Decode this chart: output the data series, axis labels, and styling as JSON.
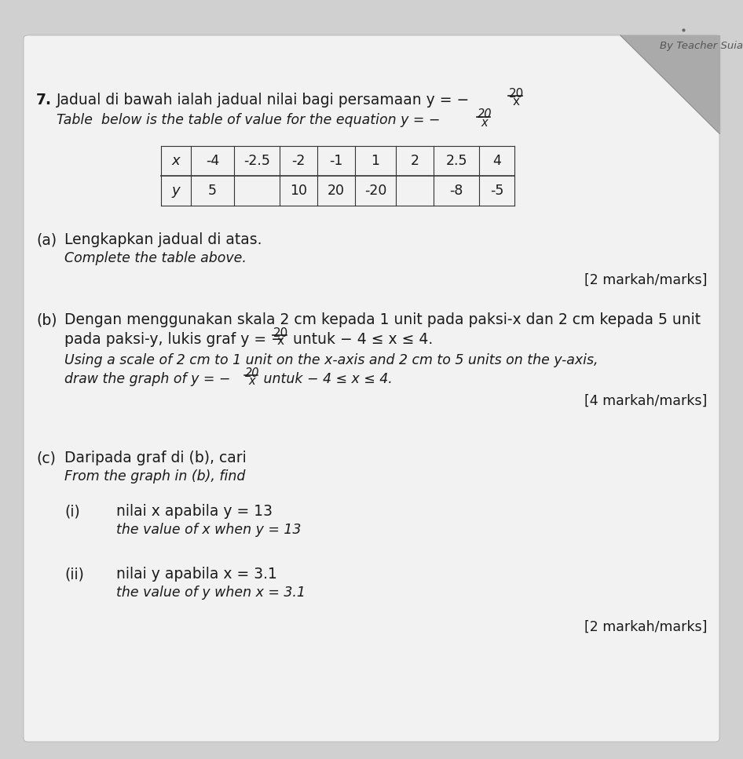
{
  "bg_color": "#d0d0d0",
  "page_color": "#f2f2f2",
  "watermark": "By Teacher Suia",
  "table_x_values": [
    "-4",
    "-2.5",
    "-2",
    "-1",
    "1",
    "2",
    "2.5",
    "4"
  ],
  "table_y_values": [
    "5",
    "",
    "10",
    "20",
    "-20",
    "",
    "-8",
    "-5"
  ],
  "marks_a": "[2 markah/marks]",
  "marks_b": "[4 markah/marks]",
  "marks_c": "[2 markah/marks]",
  "font_size_main": 13.5,
  "font_size_italic": 12.5,
  "font_size_table": 13,
  "text_color": "#1a1a1a"
}
